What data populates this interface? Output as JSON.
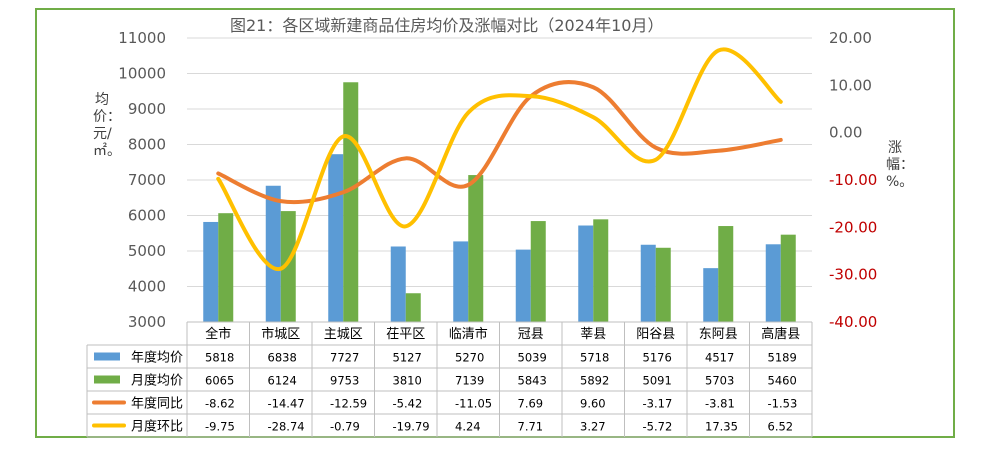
{
  "chart_data": {
    "type": "bar",
    "title": "图21：各区域新建商品住房均价及涨幅对比（2024年10月）",
    "ylabel_left": "均价：元/㎡。",
    "ylabel_right": "涨幅：%。",
    "categories": [
      "全市",
      "市城区",
      "主城区",
      "茌平区",
      "临清市",
      "冠县",
      "莘县",
      "阳谷县",
      "东阿县",
      "高唐县"
    ],
    "ylim_left": [
      3000,
      11000
    ],
    "ylim_right": [
      -40,
      20
    ],
    "yticks_left": [
      "3000",
      "4000",
      "5000",
      "6000",
      "7000",
      "8000",
      "9000",
      "10000",
      "11000"
    ],
    "yticks_right": [
      "-40.00",
      "-30.00",
      "-20.00",
      "-10.00",
      "0.00",
      "10.00",
      "20.00"
    ],
    "grid": true,
    "legend": "table-below",
    "series": [
      {
        "name": "年度均价",
        "type": "bar",
        "axis": "left",
        "color": "#5b9bd5",
        "values": [
          5818,
          6838,
          7727,
          5127,
          5270,
          5039,
          5718,
          5176,
          4517,
          5189
        ],
        "labels": [
          "5818",
          "6838",
          "7727",
          "5127",
          "5270",
          "5039",
          "5718",
          "5176",
          "4517",
          "5189"
        ]
      },
      {
        "name": "月度均价",
        "type": "bar",
        "axis": "left",
        "color": "#70ad47",
        "values": [
          6065,
          6124,
          9753,
          3810,
          7139,
          5843,
          5892,
          5091,
          5703,
          5460
        ],
        "labels": [
          "6065",
          "6124",
          "9753",
          "3810",
          "7139",
          "5843",
          "5892",
          "5091",
          "5703",
          "5460"
        ]
      },
      {
        "name": "年度同比",
        "type": "line",
        "axis": "right",
        "color": "#ed7d31",
        "values": [
          -8.62,
          -14.47,
          -12.59,
          -5.42,
          -11.05,
          7.69,
          9.6,
          -3.17,
          -3.81,
          -1.53
        ],
        "labels": [
          "-8.62",
          "-14.47",
          "-12.59",
          "-5.42",
          "-11.05",
          "7.69",
          "9.60",
          "-3.17",
          "-3.81",
          "-1.53"
        ]
      },
      {
        "name": "月度环比",
        "type": "line",
        "axis": "right",
        "color": "#ffc000",
        "values": [
          -9.75,
          -28.74,
          -0.79,
          -19.79,
          4.24,
          7.71,
          3.27,
          -5.72,
          17.35,
          6.52
        ],
        "labels": [
          "-9.75",
          "-28.74",
          "-0.79",
          "-19.79",
          "4.24",
          "7.71",
          "3.27",
          "-5.72",
          "17.35",
          "6.52"
        ]
      }
    ]
  }
}
